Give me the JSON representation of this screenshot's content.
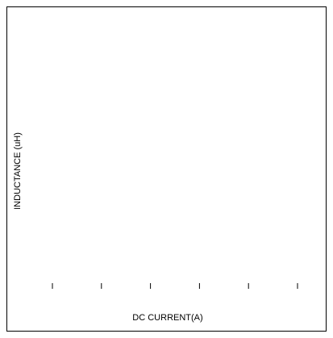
{
  "chart_data": {
    "type": "line",
    "title": "",
    "xlabel": "DC CURRENT(A)",
    "ylabel": "INDUCTANCE (uH)",
    "x_ticks": [
      "",
      "",
      "",
      "",
      "",
      ""
    ],
    "y_ticks": [],
    "series": [],
    "grid": false,
    "legend": "none"
  },
  "colors": {
    "frame": "#000000",
    "background": "#ffffff",
    "text": "#000000"
  }
}
